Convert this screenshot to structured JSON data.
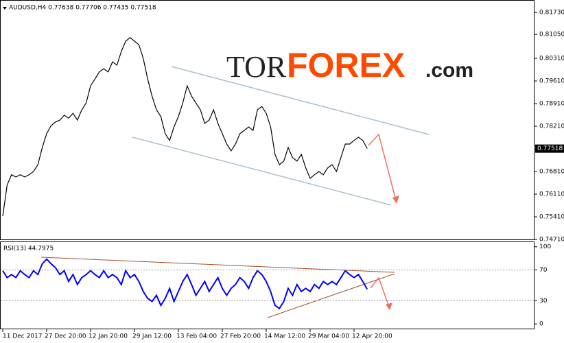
{
  "watermark": {
    "prefix": "TOR",
    "main": "FOREX",
    "suffix": ".com"
  },
  "chart_data": [
    {
      "type": "line",
      "title": "AUDUSD,H4 0.77638 0.77706 0.77435 0.77518",
      "categories": [
        "11 Dec 2017",
        null,
        null,
        null,
        null,
        null,
        null,
        null,
        null,
        null,
        "27 Dec 20:00",
        null,
        null,
        null,
        null,
        null,
        null,
        null,
        null,
        null,
        "12 Jan 20:00",
        null,
        null,
        null,
        null,
        null,
        null,
        null,
        null,
        null,
        "29 Jan 12:00",
        null,
        null,
        null,
        null,
        null,
        null,
        null,
        null,
        null,
        "13 Feb 04:00",
        null,
        null,
        null,
        null,
        null,
        null,
        null,
        null,
        null,
        "27 Feb 20:00",
        null,
        null,
        null,
        null,
        null,
        null,
        null,
        null,
        null,
        "14 Mar 12:00",
        null,
        null,
        null,
        null,
        null,
        null,
        null,
        null,
        null,
        "29 Mar 04:00",
        null,
        null,
        null,
        null,
        null,
        null,
        null,
        null,
        null,
        "12 Apr 20:00",
        null,
        null,
        null
      ],
      "series": [
        {
          "name": "AUDUSD",
          "color": "#000000",
          "values": [
            0.7543,
            0.7639,
            0.7671,
            0.7664,
            0.7671,
            0.7664,
            0.7671,
            0.7681,
            0.7702,
            0.7755,
            0.7798,
            0.7823,
            0.7834,
            0.784,
            0.7855,
            0.7846,
            0.7861,
            0.784,
            0.7872,
            0.7893,
            0.7946,
            0.7967,
            0.7989,
            0.7999,
            0.7989,
            0.802,
            0.801,
            0.8052,
            0.8084,
            0.8095,
            0.8084,
            0.8073,
            0.8031,
            0.7967,
            0.7914,
            0.7872,
            0.7851,
            0.7798,
            0.7777,
            0.7819,
            0.7851,
            0.7893,
            0.7946,
            0.7914,
            0.7893,
            0.7872,
            0.783,
            0.784,
            0.7872,
            0.783,
            0.7798,
            0.7766,
            0.7745,
            0.7766,
            0.7798,
            0.7808,
            0.7819,
            0.7808,
            0.7872,
            0.7882,
            0.7861,
            0.7819,
            0.7734,
            0.7702,
            0.7713,
            0.7755,
            0.7724,
            0.7713,
            0.7734,
            0.7692,
            0.766,
            0.7671,
            0.7681,
            0.7671,
            0.7692,
            0.7702,
            0.7681,
            0.7724,
            0.7766,
            0.7766,
            0.7777,
            0.7787,
            0.7777,
            0.7752
          ]
        }
      ],
      "last_price": 0.77518,
      "ylim": [
        0.7469,
        0.8207
      ],
      "yticks": [
        {
          "value": 0.8173,
          "label": "0.81730"
        },
        {
          "value": 0.8105,
          "label": "0.81050"
        },
        {
          "value": 0.8031,
          "label": "0.80310"
        },
        {
          "value": 0.7961,
          "label": "0.79610"
        },
        {
          "value": 0.7891,
          "label": "0.78910"
        },
        {
          "value": 0.7821,
          "label": "0.78210"
        },
        {
          "value": 0.7681,
          "label": "0.76810"
        },
        {
          "value": 0.7611,
          "label": "0.76110"
        },
        {
          "value": 0.7541,
          "label": "0.75410"
        },
        {
          "value": 0.7471,
          "label": "0.74710"
        }
      ]
    },
    {
      "type": "line",
      "title": "RSI(13) 44.7975",
      "series": [
        {
          "name": "RSI(13)",
          "color": "#0000ff",
          "values": [
            69,
            60,
            64,
            60,
            69,
            64,
            60,
            69,
            64,
            78,
            84,
            78,
            73,
            64,
            69,
            55,
            64,
            51,
            60,
            64,
            69,
            64,
            60,
            69,
            60,
            64,
            60,
            51,
            69,
            60,
            64,
            55,
            42,
            33,
            29,
            37,
            24,
            33,
            46,
            29,
            42,
            55,
            64,
            51,
            37,
            46,
            55,
            42,
            51,
            60,
            46,
            37,
            46,
            51,
            60,
            55,
            46,
            60,
            69,
            64,
            55,
            42,
            24,
            20,
            29,
            46,
            37,
            51,
            42,
            46,
            42,
            51,
            46,
            55,
            51,
            55,
            51,
            60,
            69,
            64,
            60,
            64,
            55,
            45
          ]
        }
      ],
      "ylim": [
        -7,
        106
      ],
      "yticks": [
        0,
        30,
        70,
        100
      ],
      "grid": true
    }
  ]
}
